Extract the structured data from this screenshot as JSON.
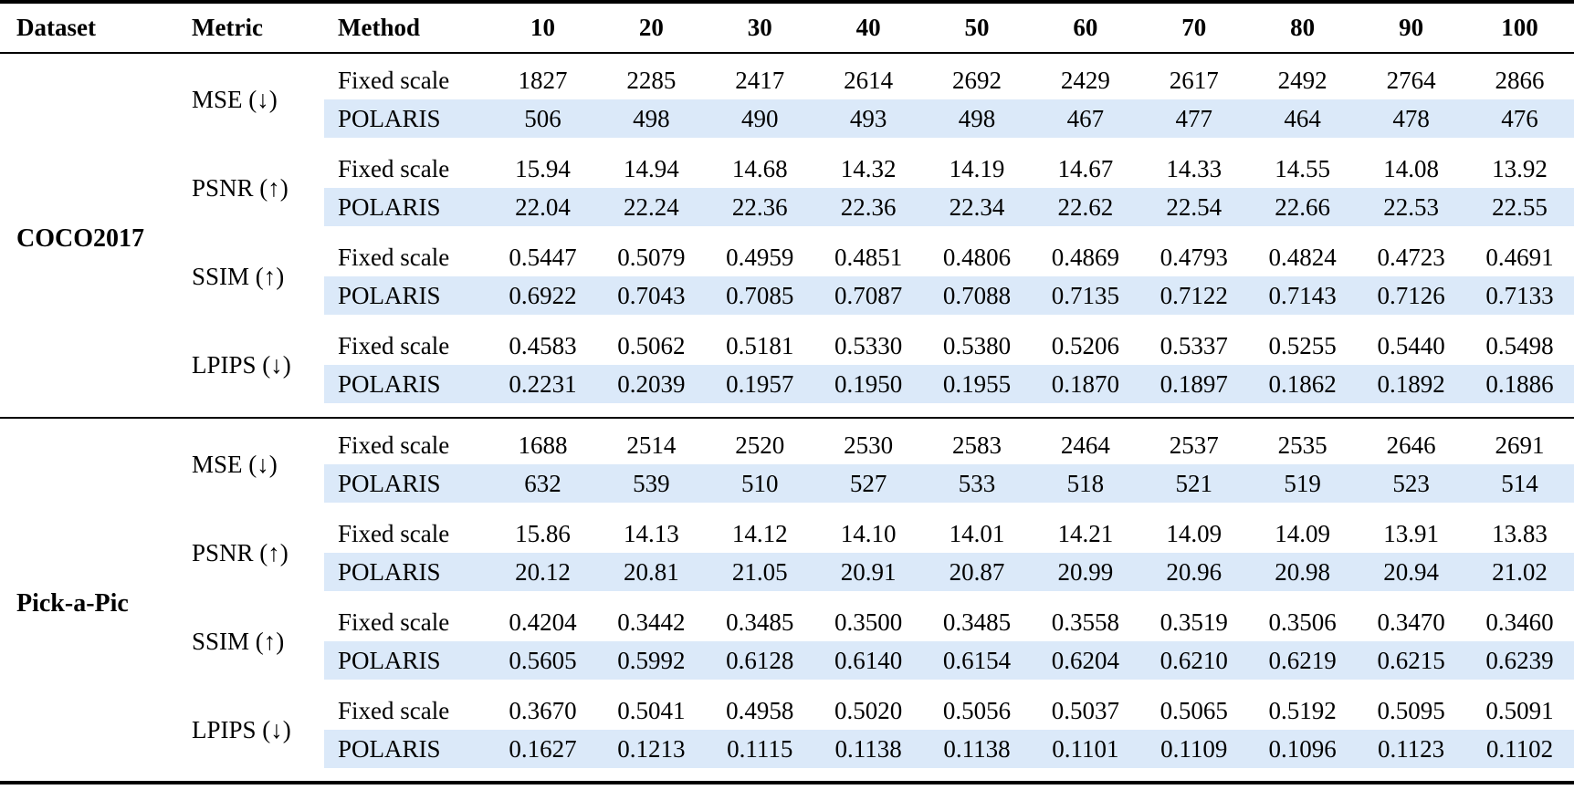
{
  "table": {
    "highlight_color": "#dbe9f9",
    "columns": [
      "Dataset",
      "Metric",
      "Method",
      "10",
      "20",
      "30",
      "40",
      "50",
      "60",
      "70",
      "80",
      "90",
      "100"
    ],
    "sections": [
      {
        "dataset": "COCO2017",
        "groups": [
          {
            "metric": "MSE (↓)",
            "rows": [
              {
                "method": "Fixed scale",
                "values": [
                  "1827",
                  "2285",
                  "2417",
                  "2614",
                  "2692",
                  "2429",
                  "2617",
                  "2492",
                  "2764",
                  "2866"
                ]
              },
              {
                "method": "POLARIS",
                "values": [
                  "506",
                  "498",
                  "490",
                  "493",
                  "498",
                  "467",
                  "477",
                  "464",
                  "478",
                  "476"
                ]
              }
            ]
          },
          {
            "metric": "PSNR (↑)",
            "rows": [
              {
                "method": "Fixed scale",
                "values": [
                  "15.94",
                  "14.94",
                  "14.68",
                  "14.32",
                  "14.19",
                  "14.67",
                  "14.33",
                  "14.55",
                  "14.08",
                  "13.92"
                ]
              },
              {
                "method": "POLARIS",
                "values": [
                  "22.04",
                  "22.24",
                  "22.36",
                  "22.36",
                  "22.34",
                  "22.62",
                  "22.54",
                  "22.66",
                  "22.53",
                  "22.55"
                ]
              }
            ]
          },
          {
            "metric": "SSIM (↑)",
            "rows": [
              {
                "method": "Fixed scale",
                "values": [
                  "0.5447",
                  "0.5079",
                  "0.4959",
                  "0.4851",
                  "0.4806",
                  "0.4869",
                  "0.4793",
                  "0.4824",
                  "0.4723",
                  "0.4691"
                ]
              },
              {
                "method": "POLARIS",
                "values": [
                  "0.6922",
                  "0.7043",
                  "0.7085",
                  "0.7087",
                  "0.7088",
                  "0.7135",
                  "0.7122",
                  "0.7143",
                  "0.7126",
                  "0.7133"
                ]
              }
            ]
          },
          {
            "metric": "LPIPS (↓)",
            "rows": [
              {
                "method": "Fixed scale",
                "values": [
                  "0.4583",
                  "0.5062",
                  "0.5181",
                  "0.5330",
                  "0.5380",
                  "0.5206",
                  "0.5337",
                  "0.5255",
                  "0.5440",
                  "0.5498"
                ]
              },
              {
                "method": "POLARIS",
                "values": [
                  "0.2231",
                  "0.2039",
                  "0.1957",
                  "0.1950",
                  "0.1955",
                  "0.1870",
                  "0.1897",
                  "0.1862",
                  "0.1892",
                  "0.1886"
                ]
              }
            ]
          }
        ]
      },
      {
        "dataset": "Pick-a-Pic",
        "groups": [
          {
            "metric": "MSE (↓)",
            "rows": [
              {
                "method": "Fixed scale",
                "values": [
                  "1688",
                  "2514",
                  "2520",
                  "2530",
                  "2583",
                  "2464",
                  "2537",
                  "2535",
                  "2646",
                  "2691"
                ]
              },
              {
                "method": "POLARIS",
                "values": [
                  "632",
                  "539",
                  "510",
                  "527",
                  "533",
                  "518",
                  "521",
                  "519",
                  "523",
                  "514"
                ]
              }
            ]
          },
          {
            "metric": "PSNR (↑)",
            "rows": [
              {
                "method": "Fixed scale",
                "values": [
                  "15.86",
                  "14.13",
                  "14.12",
                  "14.10",
                  "14.01",
                  "14.21",
                  "14.09",
                  "14.09",
                  "13.91",
                  "13.83"
                ]
              },
              {
                "method": "POLARIS",
                "values": [
                  "20.12",
                  "20.81",
                  "21.05",
                  "20.91",
                  "20.87",
                  "20.99",
                  "20.96",
                  "20.98",
                  "20.94",
                  "21.02"
                ]
              }
            ]
          },
          {
            "metric": "SSIM (↑)",
            "rows": [
              {
                "method": "Fixed scale",
                "values": [
                  "0.4204",
                  "0.3442",
                  "0.3485",
                  "0.3500",
                  "0.3485",
                  "0.3558",
                  "0.3519",
                  "0.3506",
                  "0.3470",
                  "0.3460"
                ]
              },
              {
                "method": "POLARIS",
                "values": [
                  "0.5605",
                  "0.5992",
                  "0.6128",
                  "0.6140",
                  "0.6154",
                  "0.6204",
                  "0.6210",
                  "0.6219",
                  "0.6215",
                  "0.6239"
                ]
              }
            ]
          },
          {
            "metric": "LPIPS (↓)",
            "rows": [
              {
                "method": "Fixed scale",
                "values": [
                  "0.3670",
                  "0.5041",
                  "0.4958",
                  "0.5020",
                  "0.5056",
                  "0.5037",
                  "0.5065",
                  "0.5192",
                  "0.5095",
                  "0.5091"
                ]
              },
              {
                "method": "POLARIS",
                "values": [
                  "0.1627",
                  "0.1213",
                  "0.1115",
                  "0.1138",
                  "0.1138",
                  "0.1101",
                  "0.1109",
                  "0.1096",
                  "0.1123",
                  "0.1102"
                ]
              }
            ]
          }
        ]
      }
    ]
  }
}
